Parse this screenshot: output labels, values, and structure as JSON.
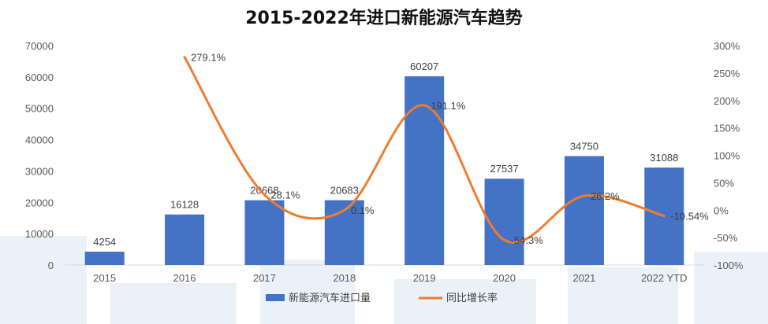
{
  "chart_data": {
    "type": "bar",
    "title": "2015-2022年进口新能源汽车趋势",
    "categories": [
      "2015",
      "2016",
      "2017",
      "2018",
      "2019",
      "2020",
      "2021",
      "2022 YTD"
    ],
    "series": [
      {
        "name": "新能源汽车进口量",
        "type": "bar",
        "axis": "left",
        "color": "#4472c4",
        "values": [
          4254,
          16128,
          20668,
          20683,
          60207,
          27537,
          34750,
          31088
        ],
        "labels": [
          "4254",
          "16128",
          "20668",
          "20683",
          "60207",
          "27537",
          "34750",
          "31088"
        ]
      },
      {
        "name": "同比增长率",
        "type": "line",
        "axis": "right",
        "color": "#ed7d31",
        "values": [
          null,
          279.1,
          28.1,
          0.1,
          191.1,
          -54.3,
          26.2,
          -10.54
        ],
        "labels": [
          "",
          "279.1%",
          "28.1%",
          "0.1%",
          "191.1%",
          "-54.3%",
          "26.2%",
          "-10.54%"
        ]
      }
    ],
    "y_left": {
      "range": [
        0,
        70000
      ],
      "ticks": [
        0,
        10000,
        20000,
        30000,
        40000,
        50000,
        60000,
        70000
      ],
      "tick_labels": [
        "0",
        "10000",
        "20000",
        "30000",
        "40000",
        "50000",
        "60000",
        "70000"
      ]
    },
    "y_right": {
      "range": [
        -100,
        300
      ],
      "ticks": [
        -100,
        -50,
        0,
        50,
        100,
        150,
        200,
        250,
        300
      ],
      "tick_labels": [
        "-100%",
        "-50%",
        "0%",
        "50%",
        "100%",
        "150%",
        "200%",
        "250%",
        "300%"
      ]
    },
    "grid": false,
    "legend_position": "bottom"
  }
}
